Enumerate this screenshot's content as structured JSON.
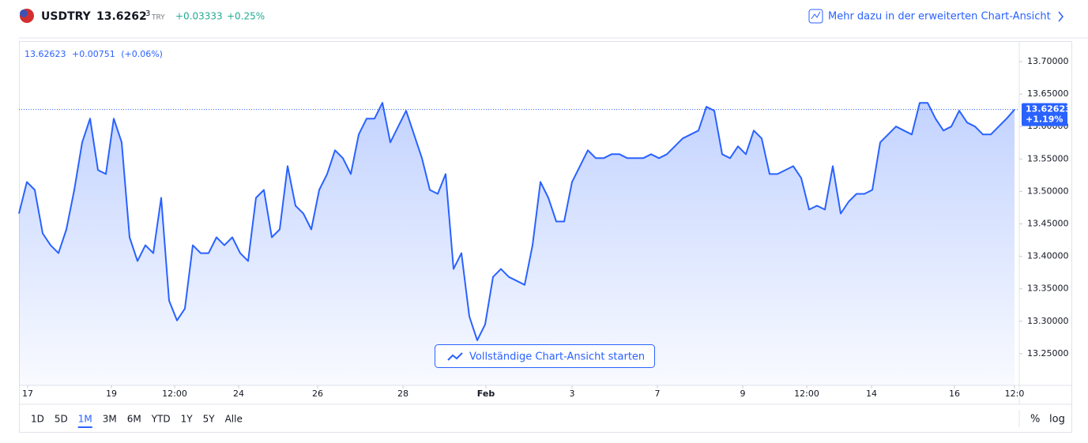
{
  "header": {
    "symbol": "USDTRY",
    "price_main": "13.6262",
    "price_last_digit": "3",
    "currency": "TRY",
    "change": "+0.03333",
    "change_pct": "+0.25%",
    "link": "Mehr dazu in der erweiterten Chart-Ansicht"
  },
  "legend": {
    "price": "13.62623",
    "change": "+0.00751",
    "change_pct": "(+0.06%)"
  },
  "button": "Vollständige Chart-Ansicht starten",
  "toolbar": {
    "ranges": [
      "1D",
      "5D",
      "1M",
      "3M",
      "6M",
      "YTD",
      "1Y",
      "5Y",
      "Alle"
    ],
    "percent": "%",
    "log": "log"
  },
  "chart_data": {
    "type": "area",
    "color": "#2962ff",
    "values": [
      13.4659,
      13.5146,
      13.5024,
      13.4354,
      13.4171,
      13.4049,
      13.4415,
      13.5024,
      13.5756,
      13.6122,
      13.5329,
      13.5268,
      13.6122,
      13.5756,
      13.4293,
      13.3927,
      13.4171,
      13.4049,
      13.4902,
      13.3317,
      13.3012,
      13.3195,
      13.4171,
      13.4049,
      13.4049,
      13.4293,
      13.4171,
      13.4293,
      13.4049,
      13.3927,
      13.4902,
      13.5024,
      13.4293,
      13.4415,
      13.539,
      13.478,
      13.4659,
      13.4415,
      13.5024,
      13.5268,
      13.5634,
      13.5512,
      13.5268,
      13.5878,
      13.6122,
      13.6122,
      13.6366,
      13.5756,
      13.6,
      13.6244,
      13.5878,
      13.5512,
      13.5024,
      13.4963,
      13.5268,
      13.3805,
      13.4049,
      13.3073,
      13.2707,
      13.2951,
      13.3683,
      13.3805,
      13.3683,
      13.3622,
      13.3561,
      13.4171,
      13.5146,
      13.4902,
      13.4537,
      13.4537,
      13.5146,
      13.539,
      13.5634,
      13.5512,
      13.5512,
      13.5573,
      13.5573,
      13.5512,
      13.5512,
      13.5512,
      13.5573,
      13.5512,
      13.5573,
      13.5695,
      13.5817,
      13.5878,
      13.5939,
      13.6305,
      13.6244,
      13.5573,
      13.5512,
      13.5695,
      13.5573,
      13.5939,
      13.5817,
      13.5268,
      13.5268,
      13.5329,
      13.539,
      13.5207,
      13.472,
      13.478,
      13.472,
      13.539,
      13.4659,
      13.4841,
      13.4963,
      13.4963,
      13.5024,
      13.5756,
      13.5878,
      13.6,
      13.5939,
      13.5878,
      13.6366,
      13.6366,
      13.6122,
      13.5939,
      13.6,
      13.6244,
      13.6061,
      13.6,
      13.5878,
      13.5878,
      13.6,
      13.6122,
      13.6262
    ],
    "last_value": 13.62623,
    "last_change": "+1.19%",
    "xlim": [
      0,
      126.6
    ],
    "xticks": [
      {
        "value": 1.1,
        "label": "17"
      },
      {
        "value": 11.7,
        "label": "19"
      },
      {
        "value": 19.7,
        "label": "12:00"
      },
      {
        "value": 27.8,
        "label": "24"
      },
      {
        "value": 37.8,
        "label": "26"
      },
      {
        "value": 48.6,
        "label": "28"
      },
      {
        "value": 59.1,
        "label": "Feb"
      },
      {
        "value": 70,
        "label": "3"
      },
      {
        "value": 80.8,
        "label": "7"
      },
      {
        "value": 91.6,
        "label": "9"
      },
      {
        "value": 99.7,
        "label": "12:00"
      },
      {
        "value": 107.9,
        "label": "14"
      },
      {
        "value": 118.4,
        "label": "16"
      },
      {
        "value": 126,
        "label": "12:0"
      }
    ],
    "ylim": [
      13.2012,
      13.7317
    ],
    "yticks": [
      {
        "value": 13.7,
        "label": "13.70000"
      },
      {
        "value": 13.65,
        "label": "13.65000"
      },
      {
        "value": 13.6,
        "label": "13.60000"
      },
      {
        "value": 13.55,
        "label": "13.55000"
      },
      {
        "value": 13.5,
        "label": "13.50000"
      },
      {
        "value": 13.45,
        "label": "13.45000"
      },
      {
        "value": 13.4,
        "label": "13.40000"
      },
      {
        "value": 13.35,
        "label": "13.35000"
      },
      {
        "value": 13.3,
        "label": "13.30000"
      },
      {
        "value": 13.25,
        "label": "13.25000"
      }
    ]
  }
}
